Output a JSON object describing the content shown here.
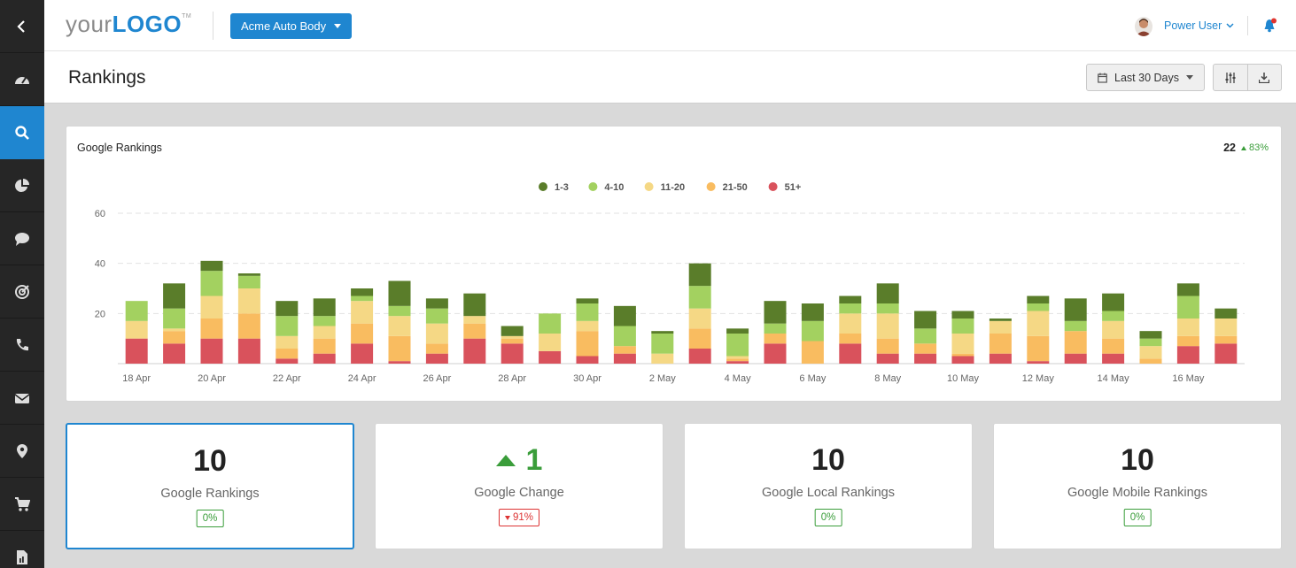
{
  "logo": {
    "part1": "your",
    "part2": "LOGO",
    "tm": "TM"
  },
  "header": {
    "client": "Acme Auto Body",
    "user": "Power User"
  },
  "page": {
    "title": "Rankings"
  },
  "toolbar": {
    "date_range": "Last 30 Days"
  },
  "sidebar": {
    "items": [
      {
        "icon": "collapse-chevron-icon"
      },
      {
        "icon": "dashboard-gauge-icon"
      },
      {
        "icon": "search-icon",
        "active": true
      },
      {
        "icon": "pie-chart-icon"
      },
      {
        "icon": "chat-bubble-icon"
      },
      {
        "icon": "target-icon"
      },
      {
        "icon": "phone-icon"
      },
      {
        "icon": "envelope-icon"
      },
      {
        "icon": "map-pin-icon"
      },
      {
        "icon": "shopping-cart-icon"
      },
      {
        "icon": "report-icon"
      }
    ]
  },
  "chart_card": {
    "title": "Google Rankings",
    "total": "22",
    "change": "83%"
  },
  "colors": {
    "accent": "#1f86d0",
    "1-3": "#5a7d2a",
    "4-10": "#a3d160",
    "11-20": "#f5d885",
    "21-50": "#f9bc60",
    "51+": "#d9525c",
    "positive": "#3a9d3a",
    "negative": "#dd3333"
  },
  "chart_data": {
    "type": "bar",
    "stacked": true,
    "legend_position": "top-center",
    "grid": true,
    "ylim": [
      0,
      60
    ],
    "yticks": [
      20,
      40,
      60
    ],
    "categories": [
      "18 Apr",
      "19 Apr",
      "20 Apr",
      "21 Apr",
      "22 Apr",
      "23 Apr",
      "24 Apr",
      "25 Apr",
      "26 Apr",
      "27 Apr",
      "28 Apr",
      "29 Apr",
      "30 Apr",
      "1 May",
      "2 May",
      "3 May",
      "4 May",
      "5 May",
      "6 May",
      "7 May",
      "8 May",
      "9 May",
      "10 May",
      "11 May",
      "12 May",
      "13 May",
      "14 May",
      "15 May",
      "16 May",
      "17 May"
    ],
    "xtick_labels": [
      "18 Apr",
      "",
      "20 Apr",
      "",
      "22 Apr",
      "",
      "24 Apr",
      "",
      "26 Apr",
      "",
      "28 Apr",
      "",
      "30 Apr",
      "",
      "2 May",
      "",
      "4 May",
      "",
      "6 May",
      "",
      "8 May",
      "",
      "10 May",
      "",
      "12 May",
      "",
      "14 May",
      "",
      "16 May",
      ""
    ],
    "series": [
      {
        "name": "51+",
        "values": [
          10,
          8,
          10,
          10,
          2,
          4,
          8,
          1,
          4,
          10,
          8,
          5,
          3,
          4,
          0,
          6,
          1,
          8,
          0,
          8,
          4,
          4,
          3,
          4,
          1,
          4,
          4,
          0,
          7,
          8
        ]
      },
      {
        "name": "21-50",
        "values": [
          0,
          5,
          8,
          10,
          4,
          6,
          8,
          10,
          4,
          6,
          2,
          0,
          10,
          3,
          0,
          8,
          1,
          4,
          9,
          4,
          6,
          4,
          1,
          8,
          10,
          9,
          6,
          2,
          4,
          3
        ]
      },
      {
        "name": "11-20",
        "values": [
          7,
          1,
          9,
          10,
          5,
          5,
          9,
          8,
          8,
          3,
          1,
          7,
          4,
          0,
          4,
          8,
          1,
          0,
          0,
          8,
          10,
          0,
          8,
          5,
          10,
          0,
          7,
          5,
          7,
          7
        ]
      },
      {
        "name": "4-10",
        "values": [
          8,
          8,
          10,
          5,
          8,
          4,
          2,
          4,
          6,
          0,
          0,
          8,
          7,
          8,
          8,
          9,
          9,
          4,
          8,
          4,
          4,
          6,
          6,
          0,
          3,
          4,
          4,
          3,
          9,
          0
        ]
      },
      {
        "name": "1-3",
        "values": [
          0,
          10,
          4,
          1,
          6,
          7,
          3,
          10,
          4,
          9,
          4,
          0,
          2,
          8,
          1,
          9,
          2,
          9,
          7,
          3,
          8,
          7,
          3,
          1,
          3,
          9,
          7,
          3,
          5,
          4
        ]
      }
    ]
  },
  "stats": [
    {
      "value": "10",
      "label": "Google Rankings",
      "badge": "0%"
    },
    {
      "value": "1",
      "label": "Google Change",
      "badge": "91%"
    },
    {
      "value": "10",
      "label": "Google Local Rankings",
      "badge": "0%"
    },
    {
      "value": "10",
      "label": "Google Mobile Rankings",
      "badge": "0%"
    }
  ]
}
